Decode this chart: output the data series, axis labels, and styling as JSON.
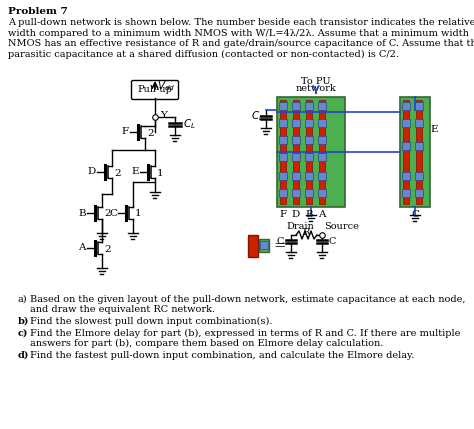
{
  "bg_color": "#ffffff",
  "text_color": "#000000",
  "title": "Problem 7",
  "body_lines": [
    "A pull-down network is shown below. The number beside each transistor indicates the relative",
    "width compared to a minimum width NMOS with W/L=4λ/2λ. Assume that a minimum width",
    "NMOS has an effective resistance of R and gate/drain/source capacitance of C. Assume that the",
    "parasitic capacitance at a shared diffusion (contacted or non-contacted) is C/2."
  ],
  "title_fontsize": 7.5,
  "body_fontsize": 7.0,
  "q_fontsize": 7.0,
  "questions": [
    [
      "a)",
      "Based on the given layout of the pull-down network, estimate capacitance at each node,",
      "and draw the equivalent RC network."
    ],
    [
      "b)",
      "Find the slowest pull down input combination(s).",
      ""
    ],
    [
      "c)",
      "Find the Elmore delay for part (b), expressed in terms of R and C. If there are multiple",
      "answers for part (b), compare them based on Elmore delay calculation."
    ],
    [
      "d)",
      "Find the fastest pull-down input combination, and calculate the Elmore delay.",
      ""
    ]
  ],
  "green_color": "#4a7c4a",
  "green_fill": "#5a9a5a",
  "red_color": "#cc2200",
  "blue_color": "#2244cc",
  "gray_contact": "#888888",
  "contact_outline": "#444444"
}
